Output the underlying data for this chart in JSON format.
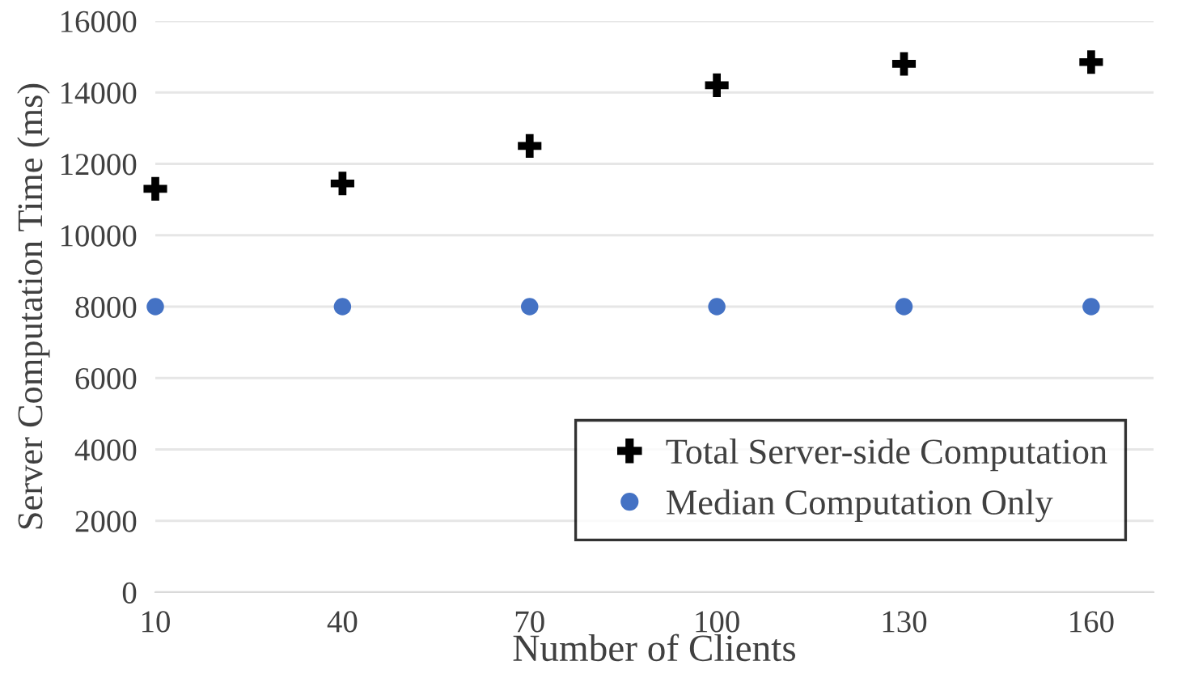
{
  "chart_data": {
    "type": "scatter",
    "xlabel": "Number of Clients",
    "ylabel": "Server Computation Time (ms)",
    "x": [
      10,
      40,
      70,
      100,
      130,
      160
    ],
    "series": [
      {
        "name": "Total Server-side Computation",
        "color": "#000000",
        "marker": "cross",
        "values": [
          11300,
          11450,
          12500,
          14200,
          14800,
          14850
        ]
      },
      {
        "name": "Median Computation Only",
        "color": "#4472c4",
        "marker": "circle",
        "values": [
          8000,
          8000,
          8000,
          8000,
          8000,
          8000
        ]
      }
    ],
    "xlim": [
      10,
      170
    ],
    "xticks": [
      10,
      40,
      70,
      100,
      130,
      160
    ],
    "ylim": [
      0,
      16000
    ],
    "yticks": [
      0,
      2000,
      4000,
      6000,
      8000,
      10000,
      12000,
      14000,
      16000
    ],
    "grid": "y",
    "legend": "bottom right"
  }
}
